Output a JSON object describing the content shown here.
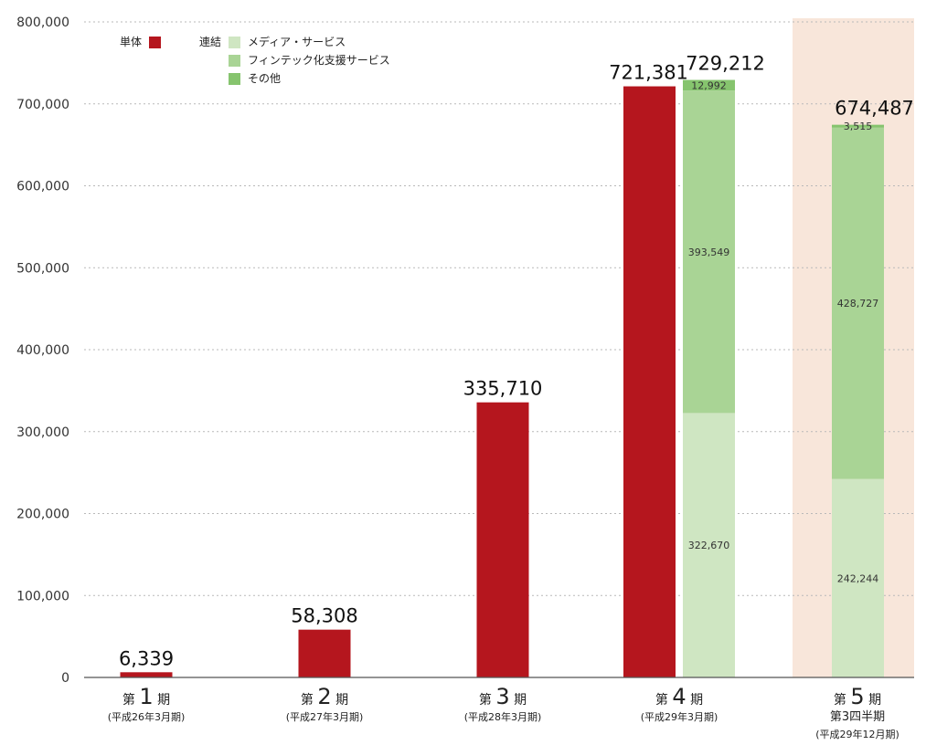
{
  "chart_data": {
    "type": "bar",
    "stacked": true,
    "categories": [
      {
        "label": "第1期",
        "prefix": "第",
        "number": "1",
        "suffix": "期",
        "sub": [
          "(平成26年3月期)"
        ]
      },
      {
        "label": "第2期",
        "prefix": "第",
        "number": "2",
        "suffix": "期",
        "sub": [
          "(平成27年3月期)"
        ]
      },
      {
        "label": "第3期",
        "prefix": "第",
        "number": "3",
        "suffix": "期",
        "sub": [
          "(平成28年3月期)"
        ]
      },
      {
        "label": "第4期",
        "prefix": "第",
        "number": "4",
        "suffix": "期",
        "sub": [
          "(平成29年3月期)"
        ]
      },
      {
        "label": "第5期",
        "prefix": "第",
        "number": "5",
        "suffix": "期",
        "sub": [
          "第3四半期",
          "(平成29年12月期)"
        ],
        "highlighted": true
      }
    ],
    "legend": {
      "standalone_label": "単体",
      "consolidated_label": "連結",
      "placement": "top-left"
    },
    "series": [
      {
        "name": "単体",
        "group": "standalone",
        "color": "#b5161e",
        "values": [
          6339,
          58308,
          335710,
          721381,
          null
        ]
      },
      {
        "name": "メディア・サービス",
        "group": "consolidated",
        "color": "#cfe6c2",
        "values": [
          null,
          null,
          null,
          322670,
          242244
        ]
      },
      {
        "name": "フィンテック化支援サービス",
        "group": "consolidated",
        "color": "#a9d495",
        "values": [
          null,
          null,
          null,
          393549,
          428727
        ]
      },
      {
        "name": "その他",
        "group": "consolidated",
        "color": "#86c46e",
        "values": [
          null,
          null,
          null,
          12992,
          3515
        ]
      }
    ],
    "segment_labels": {
      "standalone": [
        "6,339",
        "58,308",
        "335,710",
        "721,381",
        ""
      ],
      "media": [
        "",
        "",
        "",
        "322,670",
        "242,244"
      ],
      "fintech": [
        "",
        "",
        "",
        "393,549",
        "428,727"
      ],
      "other": [
        "",
        "",
        "",
        "12,992",
        "3,515"
      ]
    },
    "consolidated_totals": [
      null,
      null,
      null,
      729212,
      674487
    ],
    "consolidated_total_labels": [
      "",
      "",
      "",
      "729,212",
      "674,487"
    ],
    "yticks": [
      {
        "v": 0,
        "label": "0"
      },
      {
        "v": 100000,
        "label": "100,000"
      },
      {
        "v": 200000,
        "label": "200,000"
      },
      {
        "v": 300000,
        "label": "300,000"
      },
      {
        "v": 400000,
        "label": "400,000"
      },
      {
        "v": 500000,
        "label": "500,000"
      },
      {
        "v": 600000,
        "label": "600,000"
      },
      {
        "v": 700000,
        "label": "700,000"
      },
      {
        "v": 800000,
        "label": "800,000"
      }
    ],
    "ylim": [
      0,
      800000
    ],
    "grid": true,
    "grid_style": "dotted",
    "highlight_color": "#f8e6da",
    "xlabel": "",
    "ylabel": "",
    "title": ""
  }
}
